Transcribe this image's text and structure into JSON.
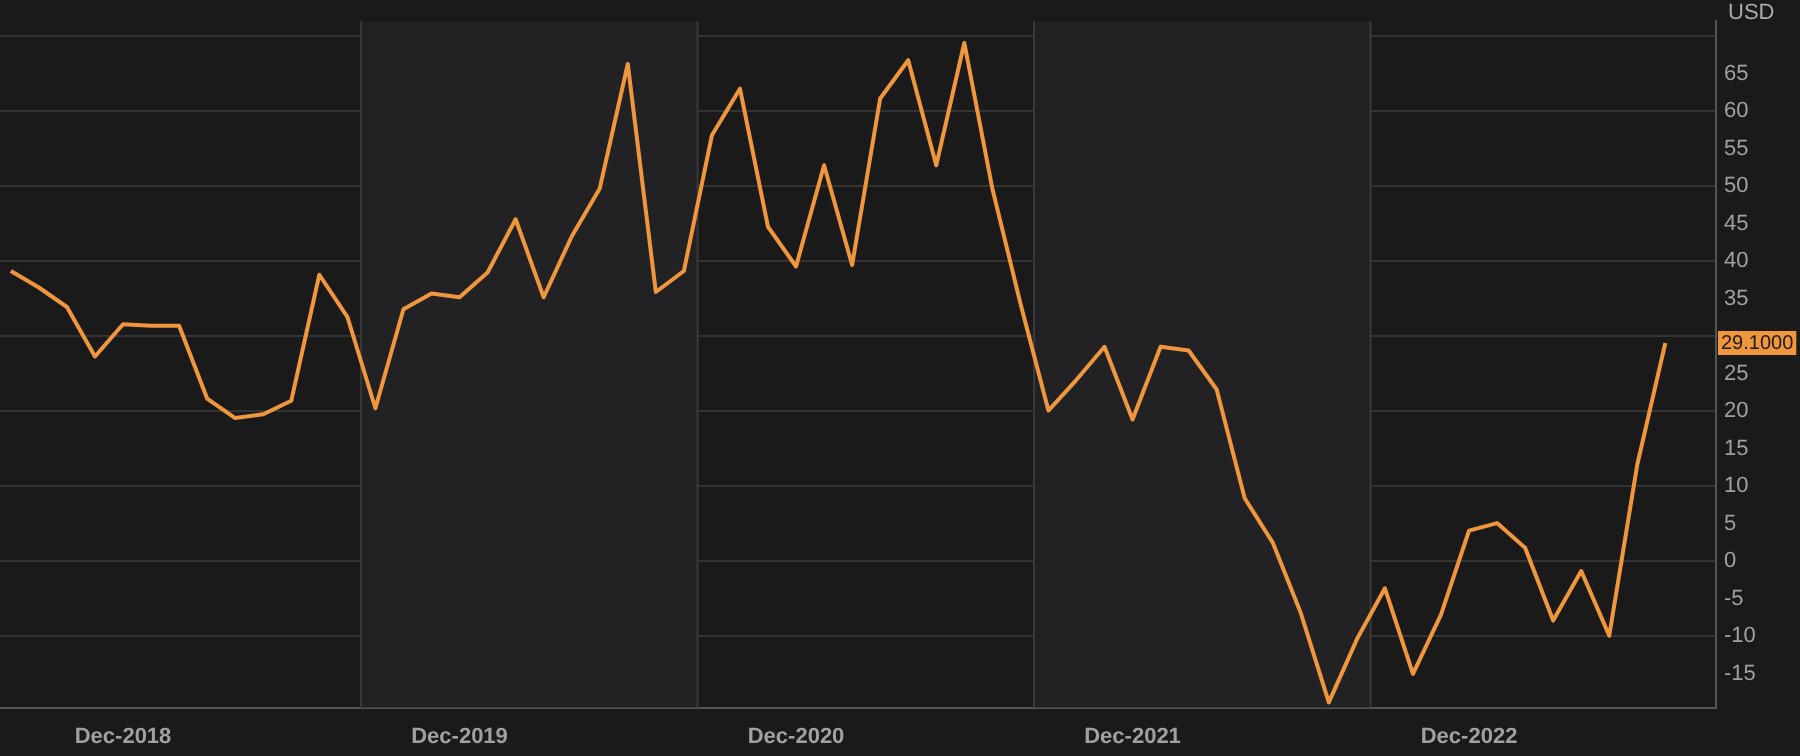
{
  "chart_data": {
    "type": "line",
    "ylabel": "USD",
    "x": [
      "2018-08",
      "2018-09",
      "2018-10",
      "2018-11",
      "2018-12",
      "2019-01",
      "2019-02",
      "2019-03",
      "2019-04",
      "2019-05",
      "2019-06",
      "2019-07",
      "2019-08",
      "2019-09",
      "2019-10",
      "2019-11",
      "2019-12",
      "2020-01",
      "2020-02",
      "2020-03",
      "2020-04",
      "2020-05",
      "2020-06",
      "2020-07",
      "2020-08",
      "2020-09",
      "2020-10",
      "2020-11",
      "2020-12",
      "2021-01",
      "2021-02",
      "2021-03",
      "2021-04",
      "2021-05",
      "2021-06",
      "2021-07",
      "2021-08",
      "2021-09",
      "2021-10",
      "2021-11",
      "2021-12",
      "2022-01",
      "2022-02",
      "2022-03",
      "2022-04",
      "2022-05",
      "2022-06",
      "2022-07",
      "2022-08",
      "2022-09",
      "2022-10",
      "2022-11",
      "2022-12",
      "2023-01",
      "2023-02",
      "2023-03",
      "2023-04",
      "2023-05",
      "2023-06",
      "2023-07"
    ],
    "series": [
      {
        "color": "#f0963c",
        "values": [
          38.7,
          36.5,
          33.9,
          27.3,
          31.6,
          31.4,
          31.4,
          21.7,
          19.1,
          19.6,
          21.4,
          38.2,
          32.6,
          20.4,
          33.6,
          35.7,
          35.2,
          38.5,
          45.6,
          35.2,
          43.3,
          49.7,
          66.3,
          35.9,
          38.7,
          56.8,
          63,
          44.6,
          39.3,
          52.8,
          39.5,
          61.7,
          66.8,
          52.8,
          69.1,
          49.7,
          34.4,
          20.1,
          24.2,
          28.6,
          18.9,
          28.6,
          28.1,
          22.9,
          8.4,
          2.5,
          -6.9,
          -18.8,
          -10.4,
          -3.6,
          -15,
          -7.1,
          4.1,
          5.1,
          1.8,
          -7.9,
          -1.3,
          -9.9,
          12.9,
          29.1
        ]
      }
    ],
    "xlim": [
      "2018-07-20",
      "2023-08-26"
    ],
    "xticks": [
      {
        "value": "2018-12",
        "label": "Dec-2018"
      },
      {
        "value": "2019-12",
        "label": "Dec-2019"
      },
      {
        "value": "2020-12",
        "label": "Dec-2020"
      },
      {
        "value": "2021-12",
        "label": "Dec-2021"
      },
      {
        "value": "2022-12",
        "label": "Dec-2022"
      }
    ],
    "ylim": [
      -19.5,
      72
    ],
    "yticks": [
      -15,
      -10,
      -5,
      0,
      5,
      10,
      15,
      20,
      25,
      {
        "value": 30,
        "label": null
      },
      35,
      40,
      45,
      50,
      55,
      60,
      65,
      {
        "value": 70,
        "label": null
      }
    ],
    "bands": [
      {
        "axis": "x",
        "from": "2019-08-15",
        "to": "2020-08-15",
        "color": "#222224"
      },
      {
        "axis": "x",
        "from": "2021-08-15",
        "to": "2022-08-15",
        "color": "#222224"
      }
    ],
    "annotations": [
      {
        "text": "29.1000",
        "x": "2023-07",
        "y": 29.1
      }
    ],
    "grid": "y",
    "legend": false,
    "marker": "none",
    "line_style": "solid"
  }
}
